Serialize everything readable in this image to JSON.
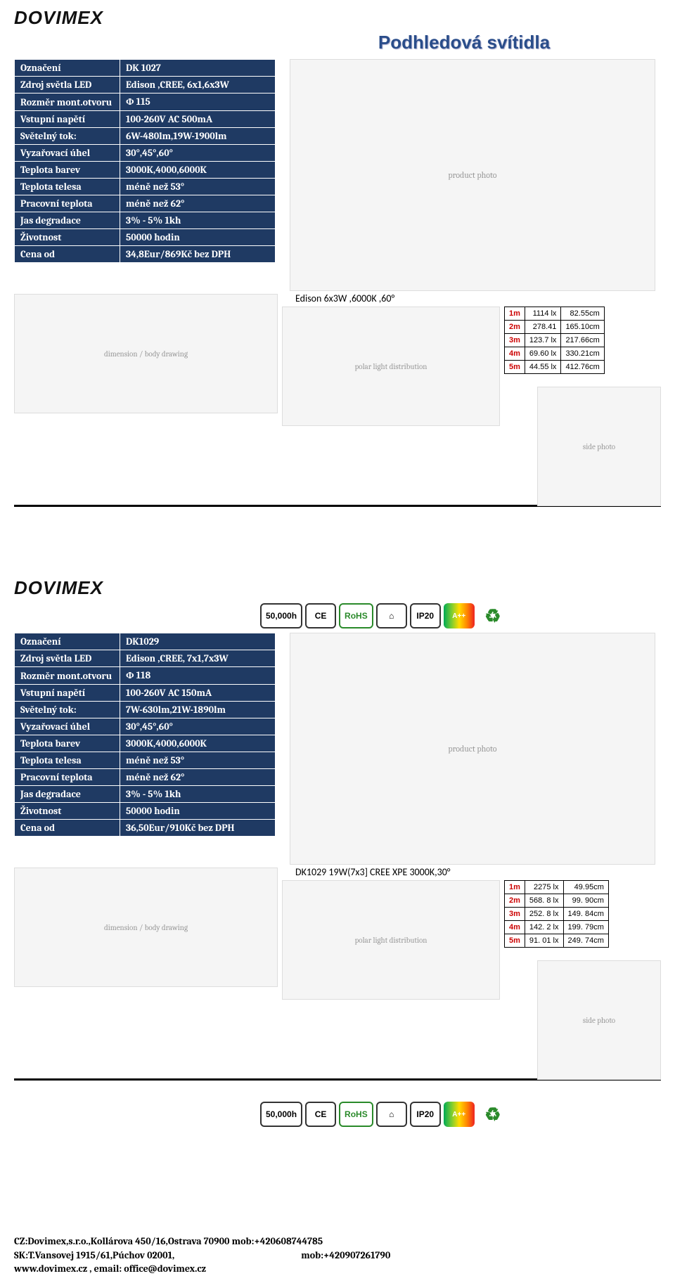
{
  "brand": "DOVIMEX",
  "page_title": "Podhledová svítidla",
  "labels": {
    "oznaceni": "Označení",
    "zdroj": "Zdroj světla LED",
    "rozmer": "Rozměr mont.otvoru",
    "vstupni": "Vstupní napětí",
    "svetelny": "Světelný tok:",
    "vyzar": "Vyzařovací úhel",
    "barev": "Teplota barev",
    "telesa": "Teplota telesa",
    "pracovni": "Pracovní teplota",
    "jas": "Jas degradace",
    "zivotnost": "Životnost",
    "cena": "Cena od"
  },
  "products": [
    {
      "values": {
        "oznaceni": "DK 1027",
        "zdroj": "Edison ,CREE, 6x1,6x3W",
        "rozmer": "Φ 115",
        "vstupni": "100-260V AC  500mA",
        "svetelny": "6W-480lm,19W-1900lm",
        "vyzar": "30°,45°,60°",
        "barev": "3000K,4000,6000K",
        "telesa": "méně než 53°",
        "pracovni": "méně než 62°",
        "jas": "3% - 5% 1kh",
        "zivotnost": "50000 hodin",
        "cena": "34,8Eur/869Kč bez DPH"
      },
      "tech_caption": "Edison 6x3W ,6000K ,60°",
      "lux": [
        {
          "m": "1m",
          "lx": "1114 lx",
          "d": "82.55cm"
        },
        {
          "m": "2m",
          "lx": "278.41",
          "d": "165.10cm"
        },
        {
          "m": "3m",
          "lx": "123.7 lx",
          "d": "217.66cm"
        },
        {
          "m": "4m",
          "lx": "69.60 lx",
          "d": "330.21cm"
        },
        {
          "m": "5m",
          "lx": "44.55 lx",
          "d": "412.76cm"
        }
      ]
    },
    {
      "values": {
        "oznaceni": "DK1029",
        "zdroj": "Edison ,CREE, 7x1,7x3W",
        "rozmer": "Φ 118",
        "vstupni": "100-260V AC 150mA",
        "svetelny": "7W-630lm,21W-1890lm",
        "vyzar": "30°,45°,60°",
        "barev": "3000K,4000,6000K",
        "telesa": "méně než 53°",
        "pracovni": "méně než 62°",
        "jas": "3% - 5% 1kh",
        "zivotnost": "50000 hodin",
        "cena": "36,50Eur/910Kč bez DPH"
      },
      "tech_caption": "DK1029 19W(7x3] CREE XPE 3000K,30°",
      "lux": [
        {
          "m": "1m",
          "lx": "2275 lx",
          "d": "49.95cm"
        },
        {
          "m": "2m",
          "lx": "568. 8 lx",
          "d": "99. 90cm"
        },
        {
          "m": "3m",
          "lx": "252. 8 lx",
          "d": "149. 84cm"
        },
        {
          "m": "4m",
          "lx": "142. 2 lx",
          "d": "199. 79cm"
        },
        {
          "m": "5m",
          "lx": "91. 01 lx",
          "d": "249. 74cm"
        }
      ]
    }
  ],
  "certs": [
    "50,000h",
    "CE",
    "RoHS",
    "⌂",
    "IP20"
  ],
  "footer": {
    "l1a": "CZ:Dovimex,s.r.o.,Kollárova 450/16,Ostrava 70900 ",
    "l1b": "mob:+420608744785",
    "l2a": "SK:T.Vansovej 1915/61,Púchov 02001,",
    "l2b": "mob:+420907261790",
    "l3": "www.dovimex.cz , email: office@dovimex.cz"
  }
}
